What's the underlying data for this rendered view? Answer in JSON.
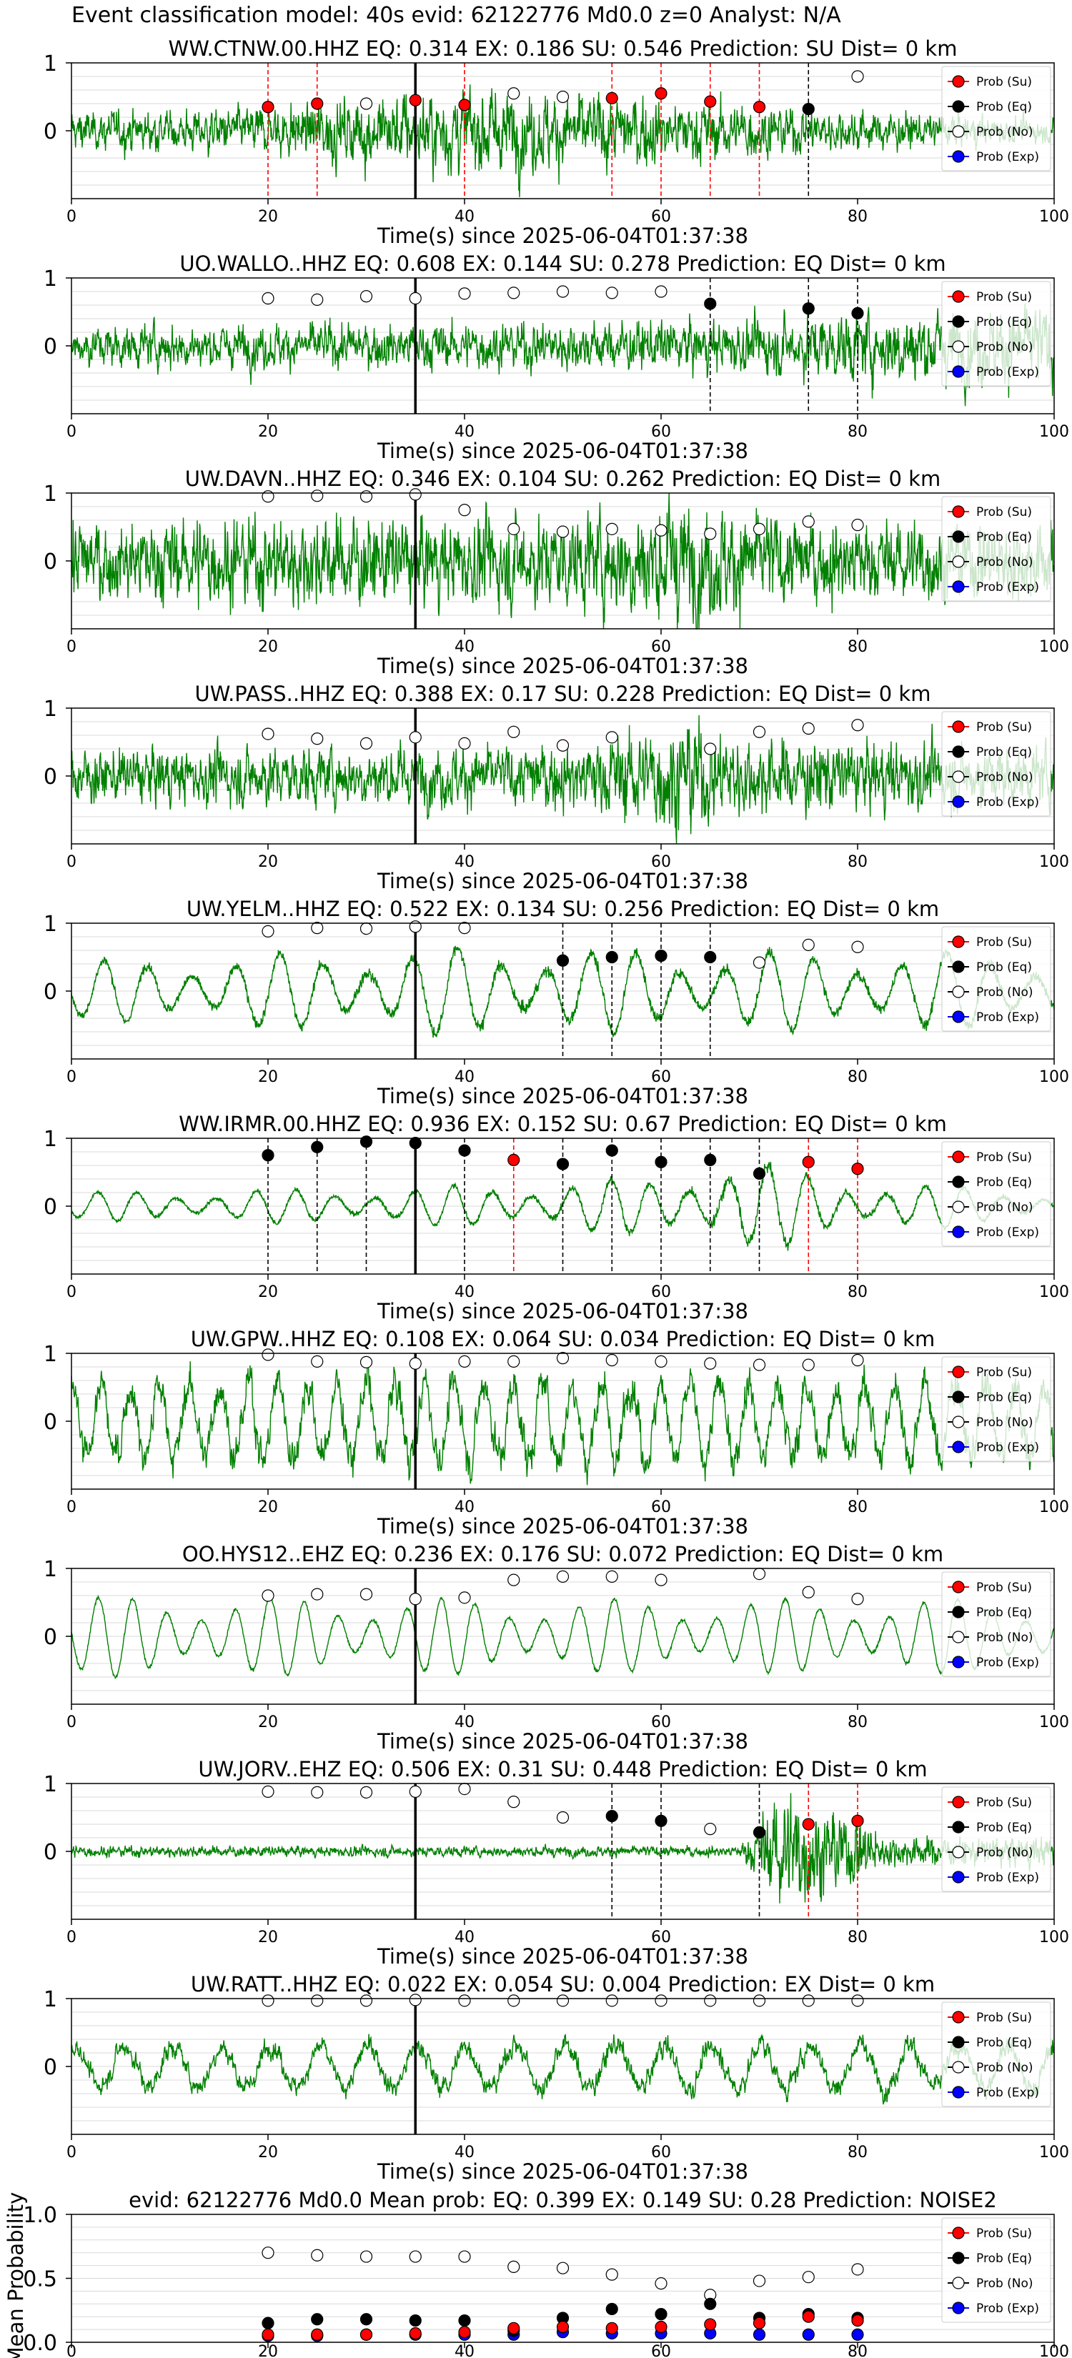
{
  "header": {
    "title": "Event classification model: 40s evid: 62122776 Md0.0 z=0 Analyst: N/A"
  },
  "common": {
    "xlabel": "Time(s) since 2025-06-04T01:37:38",
    "xlim": [
      0,
      100
    ],
    "xticks": [
      0,
      20,
      40,
      60,
      80,
      100
    ],
    "ylim": [
      -1,
      1
    ],
    "yticks": [
      0,
      1
    ],
    "event_line_x": 35,
    "legend_position": "top-right",
    "legend": [
      {
        "label": "Prob (Su)",
        "fill": "#ff0000",
        "edge": "#000000"
      },
      {
        "label": "Prob (Eq)",
        "fill": "#000000",
        "edge": "#000000"
      },
      {
        "label": "Prob (No)",
        "fill": "#ffffff",
        "edge": "#000000"
      },
      {
        "label": "Prob (Exp)",
        "fill": "#0000ff",
        "edge": "#000000"
      }
    ],
    "colors": {
      "waveform": "#008000",
      "su_line": "#ff0000",
      "eq_line": "#000000",
      "grid": "#d9d9d9"
    }
  },
  "chart_data": [
    {
      "type": "line",
      "station": "WW.CTNW.00.HHZ",
      "title": "WW.CTNW.00.HHZ   EQ: 0.314  EX: 0.186  SU: 0.546   Prediction: SU    Dist= 0 km",
      "waveform": {
        "style": "broadband",
        "amp": 0.45,
        "envelope": [
          [
            0,
            0.5
          ],
          [
            20,
            0.6
          ],
          [
            30,
            1.0
          ],
          [
            45,
            1.1
          ],
          [
            60,
            0.9
          ],
          [
            75,
            0.6
          ],
          [
            100,
            0.3
          ]
        ]
      },
      "windows": [
        20,
        25,
        30,
        35,
        40,
        45,
        50,
        55,
        60,
        65,
        70,
        75,
        80
      ],
      "markers": [
        "su",
        "su",
        "no",
        "su",
        "su",
        "no",
        "no",
        "su",
        "su",
        "su",
        "su",
        "eq",
        "no"
      ],
      "values": [
        0.35,
        0.4,
        0.4,
        0.45,
        0.38,
        0.55,
        0.5,
        0.48,
        0.55,
        0.43,
        0.35,
        0.32,
        0.8
      ]
    },
    {
      "type": "line",
      "station": "UO.WALLO..HHZ",
      "title": "UO.WALLO..HHZ   EQ: 0.608  EX: 0.144  SU: 0.278   Prediction: EQ    Dist= 0 km",
      "waveform": {
        "style": "broadband",
        "amp": 0.35,
        "envelope": [
          [
            0,
            0.7
          ],
          [
            40,
            0.8
          ],
          [
            70,
            0.9
          ],
          [
            80,
            1.2
          ],
          [
            100,
            1.4
          ]
        ]
      },
      "windows": [
        20,
        25,
        30,
        35,
        40,
        45,
        50,
        55,
        60,
        65,
        75,
        80
      ],
      "markers": [
        "no",
        "no",
        "no",
        "no",
        "no",
        "no",
        "no",
        "no",
        "no",
        "eq",
        "eq",
        "eq"
      ],
      "values": [
        0.7,
        0.68,
        0.73,
        0.7,
        0.77,
        0.78,
        0.8,
        0.78,
        0.8,
        0.62,
        0.55,
        0.48
      ]
    },
    {
      "type": "line",
      "station": "UW.DAVN..HHZ",
      "title": "UW.DAVN..HHZ   EQ: 0.346  EX: 0.104  SU: 0.262   Prediction: EQ    Dist= 0 km",
      "waveform": {
        "style": "broadband",
        "amp": 0.5,
        "envelope": [
          [
            0,
            1.0
          ],
          [
            50,
            1.1
          ],
          [
            62,
            1.5
          ],
          [
            75,
            1.0
          ],
          [
            100,
            0.9
          ]
        ]
      },
      "windows": [
        20,
        25,
        30,
        35,
        40,
        45,
        50,
        55,
        60,
        65,
        70,
        75,
        80
      ],
      "markers": [
        "no",
        "no",
        "no",
        "no",
        "no",
        "no",
        "no",
        "no",
        "no",
        "no",
        "no",
        "no",
        "no"
      ],
      "values": [
        0.95,
        0.96,
        0.95,
        0.98,
        0.75,
        0.47,
        0.43,
        0.47,
        0.45,
        0.4,
        0.47,
        0.58,
        0.53
      ]
    },
    {
      "type": "line",
      "station": "UW.PASS..HHZ",
      "title": "UW.PASS..HHZ   EQ: 0.388  EX: 0.17  SU: 0.228   Prediction: EQ    Dist= 0 km",
      "waveform": {
        "style": "broadband",
        "amp": 0.42,
        "envelope": [
          [
            0,
            0.8
          ],
          [
            50,
            0.9
          ],
          [
            62,
            1.6
          ],
          [
            70,
            1.1
          ],
          [
            100,
            0.8
          ]
        ]
      },
      "windows": [
        20,
        25,
        30,
        35,
        40,
        45,
        50,
        55,
        65,
        70,
        75,
        80
      ],
      "markers": [
        "no",
        "no",
        "no",
        "no",
        "no",
        "no",
        "no",
        "no",
        "no",
        "no",
        "no",
        "no"
      ],
      "values": [
        0.62,
        0.55,
        0.48,
        0.57,
        0.48,
        0.65,
        0.45,
        0.57,
        0.4,
        0.65,
        0.7,
        0.75
      ]
    },
    {
      "type": "line",
      "station": "UW.YELM..HHZ",
      "title": "UW.YELM..HHZ   EQ: 0.522  EX: 0.134  SU: 0.256   Prediction: EQ    Dist= 0 km",
      "waveform": {
        "style": "oscillating",
        "amp": 0.55,
        "period": 4.5,
        "envelope": [
          [
            0,
            0.8
          ],
          [
            40,
            1.2
          ],
          [
            60,
            1.1
          ],
          [
            100,
            1.0
          ]
        ]
      },
      "windows": [
        20,
        25,
        30,
        35,
        40,
        50,
        55,
        60,
        65,
        70,
        75,
        80
      ],
      "markers": [
        "no",
        "no",
        "no",
        "no",
        "no",
        "eq",
        "eq",
        "eq",
        "eq",
        "no",
        "no",
        "no"
      ],
      "values": [
        0.88,
        0.93,
        0.92,
        0.95,
        0.93,
        0.45,
        0.5,
        0.52,
        0.5,
        0.42,
        0.68,
        0.65
      ]
    },
    {
      "type": "line",
      "station": "WW.IRMR.00.HHZ",
      "title": "WW.IRMR.00.HHZ   EQ: 0.936  EX: 0.152  SU: 0.67   Prediction: EQ    Dist= 0 km",
      "waveform": {
        "style": "oscillating",
        "amp": 0.35,
        "period": 4.0,
        "envelope": [
          [
            0,
            0.6
          ],
          [
            35,
            0.8
          ],
          [
            60,
            1.2
          ],
          [
            68,
            2.0
          ],
          [
            80,
            1.1
          ],
          [
            100,
            0.6
          ]
        ]
      },
      "windows": [
        20,
        25,
        30,
        35,
        40,
        45,
        50,
        55,
        60,
        65,
        70,
        75,
        80
      ],
      "markers": [
        "eq",
        "eq",
        "eq",
        "eq",
        "eq",
        "su",
        "eq",
        "eq",
        "eq",
        "eq",
        "eq",
        "su",
        "su"
      ],
      "values": [
        0.75,
        0.87,
        0.95,
        0.93,
        0.82,
        0.68,
        0.62,
        0.82,
        0.65,
        0.68,
        0.48,
        0.65,
        0.55
      ]
    },
    {
      "type": "line",
      "station": "UW.GPW..HHZ",
      "title": "UW.GPW..HHZ   EQ: 0.108  EX: 0.064  SU: 0.034   Prediction: EQ    Dist= 0 km",
      "waveform": {
        "style": "mixed",
        "amp": 0.55,
        "period": 3.0,
        "envelope": [
          [
            0,
            1.2
          ],
          [
            50,
            1.3
          ],
          [
            100,
            1.2
          ]
        ]
      },
      "windows": [
        20,
        25,
        30,
        35,
        40,
        45,
        50,
        55,
        60,
        65,
        70,
        75,
        80
      ],
      "markers": [
        "no",
        "no",
        "no",
        "no",
        "no",
        "no",
        "no",
        "no",
        "no",
        "no",
        "no",
        "no",
        "no"
      ],
      "values": [
        0.98,
        0.88,
        0.87,
        0.85,
        0.88,
        0.88,
        0.93,
        0.9,
        0.88,
        0.85,
        0.83,
        0.83,
        0.9
      ]
    },
    {
      "type": "line",
      "station": "OO.HYS12..EHZ",
      "title": "OO.HYS12..EHZ   EQ: 0.236  EX: 0.176  SU: 0.072   Prediction: EQ    Dist= 0 km",
      "waveform": {
        "style": "oscillating",
        "amp": 0.55,
        "period": 3.5,
        "smooth": true,
        "envelope": [
          [
            0,
            1.1
          ],
          [
            50,
            1.0
          ],
          [
            100,
            1.0
          ]
        ]
      },
      "windows": [
        20,
        25,
        30,
        35,
        40,
        45,
        50,
        55,
        60,
        70,
        75,
        80
      ],
      "markers": [
        "no",
        "no",
        "no",
        "no",
        "no",
        "no",
        "no",
        "no",
        "no",
        "no",
        "no",
        "no"
      ],
      "values": [
        0.6,
        0.62,
        0.62,
        0.55,
        0.57,
        0.83,
        0.88,
        0.88,
        0.83,
        0.92,
        0.65,
        0.55
      ]
    },
    {
      "type": "line",
      "station": "UW.JORV..EHZ",
      "title": "UW.JORV..EHZ   EQ: 0.506  EX: 0.31  SU: 0.448   Prediction: EQ    Dist= 0 km",
      "waveform": {
        "style": "burst",
        "amp": 0.06,
        "burst_start": 68,
        "burst_peak": 72,
        "burst_end": 82,
        "burst_amp": 1.2
      },
      "windows": [
        20,
        25,
        30,
        35,
        40,
        45,
        50,
        55,
        60,
        65,
        70,
        75,
        80
      ],
      "markers": [
        "no",
        "no",
        "no",
        "no",
        "no",
        "no",
        "no",
        "eq",
        "eq",
        "no",
        "eq",
        "su",
        "su"
      ],
      "values": [
        0.88,
        0.87,
        0.87,
        0.88,
        0.92,
        0.73,
        0.5,
        0.52,
        0.45,
        0.33,
        0.28,
        0.4,
        0.45
      ]
    },
    {
      "type": "line",
      "station": "UW.RATT..HHZ",
      "title": "UW.RATT..HHZ   EQ: 0.022  EX: 0.054  SU: 0.004   Prediction: EX    Dist= 0 km",
      "waveform": {
        "style": "mixed",
        "amp": 0.4,
        "period": 5.0,
        "envelope": [
          [
            0,
            0.9
          ],
          [
            50,
            1.0
          ],
          [
            100,
            1.0
          ]
        ]
      },
      "windows": [
        20,
        25,
        30,
        35,
        40,
        45,
        50,
        55,
        60,
        65,
        70,
        75,
        80
      ],
      "markers": [
        "no",
        "no",
        "no",
        "no",
        "no",
        "no",
        "no",
        "no",
        "no",
        "no",
        "no",
        "no",
        "no"
      ],
      "values": [
        0.97,
        0.97,
        0.97,
        0.98,
        0.97,
        0.97,
        0.97,
        0.97,
        0.97,
        0.97,
        0.97,
        0.97,
        0.97
      ]
    },
    {
      "type": "scatter",
      "title": "evid: 62122776  Md0.0   Mean prob:   EQ: 0.399  EX: 0.149  SU: 0.28   Prediction: NOISE2",
      "ylabel": "Mean Probability",
      "ylim": [
        0,
        1.0
      ],
      "yticks": [
        0.0,
        0.5,
        1.0
      ],
      "x": [
        20,
        25,
        30,
        35,
        40,
        45,
        50,
        55,
        60,
        65,
        70,
        75,
        80
      ],
      "series": [
        {
          "name": "Prob (Su)",
          "values": [
            0.06,
            0.06,
            0.06,
            0.07,
            0.08,
            0.11,
            0.12,
            0.11,
            0.12,
            0.14,
            0.15,
            0.2,
            0.17
          ]
        },
        {
          "name": "Prob (Eq)",
          "values": [
            0.15,
            0.18,
            0.18,
            0.17,
            0.17,
            0.09,
            0.19,
            0.26,
            0.22,
            0.3,
            0.19,
            0.22,
            0.19
          ]
        },
        {
          "name": "Prob (No)",
          "values": [
            0.7,
            0.68,
            0.67,
            0.67,
            0.67,
            0.59,
            0.58,
            0.53,
            0.46,
            0.37,
            0.48,
            0.51,
            0.57
          ]
        },
        {
          "name": "Prob (Exp)",
          "values": [
            0.05,
            0.05,
            0.06,
            0.06,
            0.06,
            0.06,
            0.08,
            0.07,
            0.07,
            0.07,
            0.06,
            0.06,
            0.06
          ]
        }
      ]
    }
  ]
}
